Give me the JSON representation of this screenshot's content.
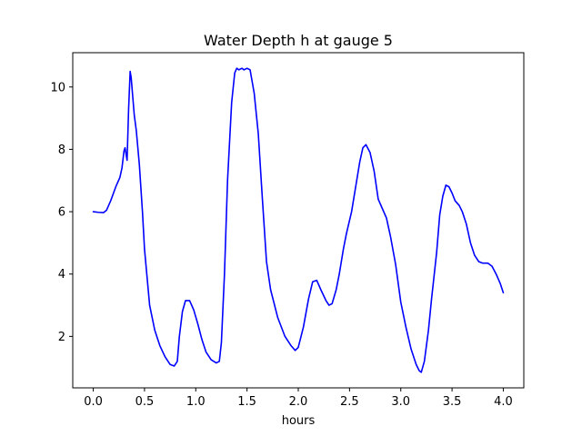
{
  "chart_data": {
    "type": "line",
    "title": "Water Depth h at gauge 5",
    "xlabel": "hours",
    "ylabel": "",
    "xlim": [
      -0.2,
      4.2
    ],
    "ylim": [
      0.35,
      11.1
    ],
    "x_ticks": [
      0.0,
      0.5,
      1.0,
      1.5,
      2.0,
      2.5,
      3.0,
      3.5,
      4.0
    ],
    "x_tick_labels": [
      "0.0",
      "0.5",
      "1.0",
      "1.5",
      "2.0",
      "2.5",
      "3.0",
      "3.5",
      "4.0"
    ],
    "y_ticks": [
      2,
      4,
      6,
      8,
      10
    ],
    "y_tick_labels": [
      "2",
      "4",
      "6",
      "8",
      "10"
    ],
    "grid": false,
    "series": [
      {
        "color": "#0000ff",
        "x": [
          0.0,
          0.05,
          0.1,
          0.13,
          0.17,
          0.22,
          0.26,
          0.28,
          0.3,
          0.31,
          0.32,
          0.33,
          0.345,
          0.36,
          0.37,
          0.4,
          0.42,
          0.45,
          0.48,
          0.5,
          0.55,
          0.6,
          0.65,
          0.7,
          0.75,
          0.79,
          0.82,
          0.84,
          0.87,
          0.9,
          0.94,
          0.98,
          1.02,
          1.06,
          1.1,
          1.15,
          1.2,
          1.23,
          1.25,
          1.28,
          1.31,
          1.35,
          1.38,
          1.4,
          1.42,
          1.45,
          1.47,
          1.5,
          1.53,
          1.57,
          1.61,
          1.65,
          1.69,
          1.73,
          1.8,
          1.87,
          1.93,
          1.97,
          2.0,
          2.05,
          2.1,
          2.14,
          2.18,
          2.22,
          2.27,
          2.3,
          2.33,
          2.37,
          2.4,
          2.44,
          2.47,
          2.52,
          2.57,
          2.6,
          2.63,
          2.66,
          2.7,
          2.74,
          2.78,
          2.82,
          2.86,
          2.9,
          2.95,
          3.0,
          3.05,
          3.1,
          3.15,
          3.18,
          3.2,
          3.23,
          3.27,
          3.3,
          3.35,
          3.38,
          3.41,
          3.44,
          3.47,
          3.5,
          3.53,
          3.57,
          3.6,
          3.64,
          3.68,
          3.72,
          3.76,
          3.8,
          3.85,
          3.89,
          3.93,
          3.97,
          4.0
        ],
        "y": [
          6.0,
          5.98,
          5.97,
          6.05,
          6.35,
          6.8,
          7.1,
          7.4,
          7.95,
          8.05,
          7.85,
          7.65,
          9.3,
          10.5,
          10.3,
          9.1,
          8.6,
          7.5,
          6.0,
          4.8,
          3.0,
          2.2,
          1.7,
          1.35,
          1.1,
          1.05,
          1.2,
          2.0,
          2.8,
          3.15,
          3.15,
          2.85,
          2.4,
          1.9,
          1.5,
          1.25,
          1.15,
          1.2,
          1.8,
          4.0,
          7.0,
          9.5,
          10.45,
          10.6,
          10.55,
          10.6,
          10.55,
          10.6,
          10.55,
          9.8,
          8.5,
          6.4,
          4.4,
          3.5,
          2.6,
          2.0,
          1.7,
          1.55,
          1.65,
          2.3,
          3.2,
          3.75,
          3.8,
          3.5,
          3.15,
          3.0,
          3.05,
          3.5,
          4.0,
          4.8,
          5.3,
          6.0,
          7.0,
          7.6,
          8.05,
          8.15,
          7.9,
          7.3,
          6.4,
          6.1,
          5.8,
          5.2,
          4.3,
          3.1,
          2.3,
          1.6,
          1.1,
          0.9,
          0.85,
          1.2,
          2.2,
          3.2,
          4.7,
          5.9,
          6.5,
          6.85,
          6.8,
          6.6,
          6.35,
          6.2,
          6.0,
          5.6,
          5.0,
          4.6,
          4.4,
          4.35,
          4.35,
          4.25,
          4.0,
          3.7,
          3.4
        ]
      }
    ]
  }
}
